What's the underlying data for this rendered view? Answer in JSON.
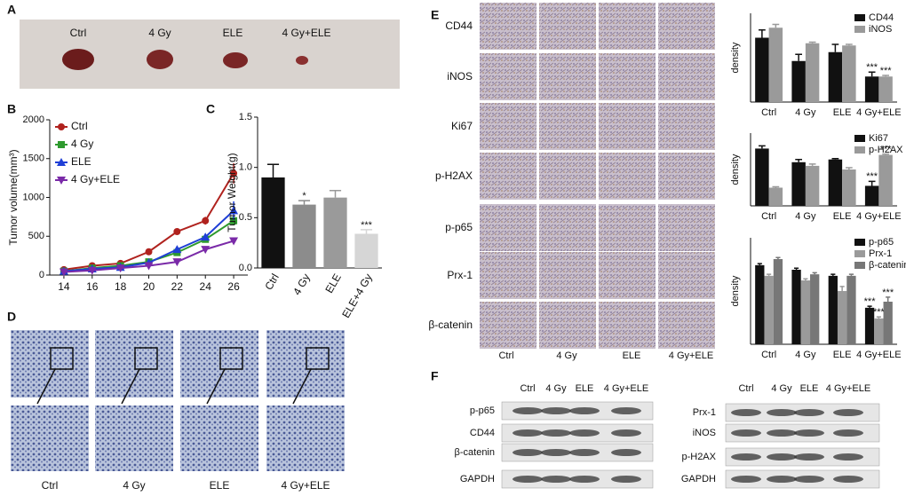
{
  "panel_letters": [
    "A",
    "B",
    "C",
    "D",
    "E",
    "F"
  ],
  "panel_a": {
    "labels": [
      "Ctrl",
      "4 Gy",
      "ELE",
      "4 Gy+ELE"
    ]
  },
  "panel_d": {
    "labels": [
      "Ctrl",
      "4 Gy",
      "ELE",
      "4 Gy+ELE"
    ]
  },
  "panel_e": {
    "rows": [
      "CD44",
      "iNOS",
      "Ki67",
      "p-H2AX",
      "p-p65",
      "Prx-1",
      "β-catenin"
    ],
    "columns": [
      "Ctrl",
      "4 Gy",
      "ELE",
      "4 Gy+ELE"
    ]
  },
  "panel_f": {
    "left": {
      "columns": [
        "Ctrl",
        "4 Gy",
        "ELE",
        "4 Gy+ELE"
      ],
      "rows": [
        "p-p65",
        "CD44",
        "β-catenin",
        "GAPDH"
      ]
    },
    "right": {
      "columns": [
        "Ctrl",
        "4 Gy",
        "ELE",
        "4 Gy+ELE"
      ],
      "rows": [
        "Prx-1",
        "iNOS",
        "p-H2AX",
        "GAPDH"
      ]
    }
  },
  "chart_data": [
    {
      "type": "line",
      "ylabel": "Tumor volume(mm³)",
      "x": [
        14,
        16,
        18,
        20,
        22,
        24,
        26
      ],
      "xlim": [
        13,
        27
      ],
      "xticks": [
        14,
        16,
        18,
        20,
        22,
        24,
        26
      ],
      "ylim": [
        0,
        2000
      ],
      "yticks": [
        0,
        500,
        1000,
        1500,
        2000
      ],
      "series": [
        {
          "name": "Ctrl",
          "color": "#b0221e",
          "marker": "circle",
          "values": [
            70,
            120,
            150,
            300,
            560,
            700,
            1310
          ],
          "errors": [
            20,
            20,
            20,
            30,
            40,
            50,
            130
          ]
        },
        {
          "name": "4 Gy",
          "color": "#2e9a2e",
          "marker": "square",
          "values": [
            50,
            90,
            120,
            170,
            290,
            460,
            700
          ],
          "errors": [
            15,
            15,
            15,
            20,
            30,
            40,
            60
          ]
        },
        {
          "name": "ELE",
          "color": "#1f3fd6",
          "marker": "triangle-up",
          "values": [
            50,
            80,
            100,
            160,
            330,
            490,
            830
          ],
          "errors": [
            15,
            15,
            15,
            20,
            30,
            40,
            120
          ]
        },
        {
          "name": "4 Gy+ELE",
          "color": "#7a2aa8",
          "marker": "triangle-down",
          "values": [
            40,
            60,
            90,
            120,
            170,
            330,
            440
          ],
          "errors": [
            10,
            10,
            10,
            15,
            20,
            30,
            30
          ]
        }
      ]
    },
    {
      "type": "bar",
      "ylabel": "Tumor Weight(g)",
      "categories": [
        "Ctrl",
        "4 Gy",
        "ELE",
        "ELE+4 Gy"
      ],
      "values": [
        0.9,
        0.63,
        0.7,
        0.34
      ],
      "errors": [
        0.13,
        0.04,
        0.07,
        0.04
      ],
      "value_labels": [
        null,
        "*",
        null,
        "***"
      ],
      "colors": [
        "#111111",
        "#8c8c8c",
        "#9a9a9a",
        "#d6d6d6"
      ],
      "ylim": [
        0,
        1.5
      ],
      "yticks": [
        {
          "value": 0,
          "label": "0.0"
        },
        {
          "value": 0.5,
          "label": "0.5"
        },
        {
          "value": 1,
          "label": "1.0"
        },
        {
          "value": 1.5,
          "label": "1.5"
        }
      ]
    },
    {
      "type": "bar",
      "ylabel": "density",
      "categories": [
        "Ctrl",
        "4 Gy",
        "ELE",
        "4 Gy+ELE"
      ],
      "ylim": [
        0,
        80
      ],
      "series": [
        {
          "name": "CD44",
          "color": "#111111",
          "values": [
            58,
            37,
            45,
            23
          ],
          "errors": [
            7,
            6,
            7,
            4
          ],
          "value_labels": [
            null,
            null,
            null,
            "***"
          ]
        },
        {
          "name": "iNOS",
          "color": "#9a9a9a",
          "values": [
            67,
            53,
            51,
            23
          ],
          "errors": [
            3,
            1,
            1,
            1
          ],
          "value_labels": [
            null,
            null,
            null,
            "***"
          ]
        }
      ]
    },
    {
      "type": "bar",
      "ylabel": "density",
      "categories": [
        "Ctrl",
        "4 Gy",
        "ELE",
        "4 Gy+ELE"
      ],
      "ylim": [
        0,
        80
      ],
      "series": [
        {
          "name": "Ki67",
          "color": "#111111",
          "values": [
            63,
            48,
            51,
            22
          ],
          "errors": [
            3,
            3,
            1,
            5
          ],
          "value_labels": [
            null,
            null,
            null,
            "***"
          ]
        },
        {
          "name": "p-H2AX",
          "color": "#9a9a9a",
          "values": [
            20,
            44,
            40,
            56
          ],
          "errors": [
            1,
            2,
            2,
            1
          ],
          "value_labels": [
            null,
            null,
            null,
            "***"
          ]
        }
      ]
    },
    {
      "type": "bar",
      "ylabel": "density",
      "categories": [
        "Ctrl",
        "4 Gy",
        "ELE",
        "4 Gy+ELE"
      ],
      "ylim": [
        0,
        70
      ],
      "series": [
        {
          "name": "p-p65",
          "color": "#111111",
          "values": [
            52,
            49,
            45,
            24
          ],
          "errors": [
            1,
            1,
            1,
            1
          ],
          "value_labels": [
            null,
            null,
            null,
            "***"
          ]
        },
        {
          "name": "Prx-1",
          "color": "#9a9a9a",
          "values": [
            45,
            42,
            35,
            17
          ],
          "errors": [
            1,
            1,
            3,
            1
          ],
          "value_labels": [
            null,
            null,
            null,
            "***"
          ]
        },
        {
          "name": "β-catenin",
          "color": "#777777",
          "values": [
            56,
            46,
            45,
            28
          ],
          "errors": [
            1,
            1,
            1,
            3
          ],
          "value_labels": [
            null,
            null,
            null,
            "***"
          ]
        }
      ]
    }
  ]
}
